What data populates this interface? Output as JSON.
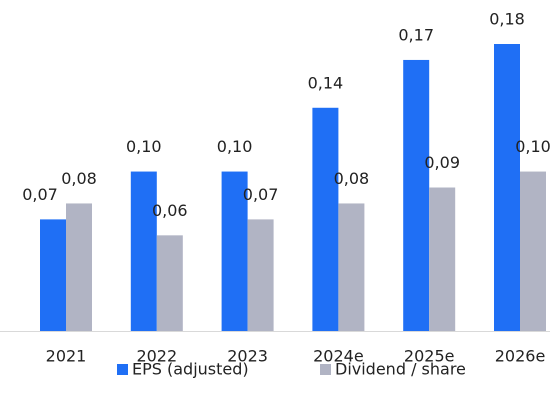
{
  "chart_data": {
    "type": "bar",
    "categories": [
      "2021",
      "2022",
      "2023",
      "2024e",
      "2025e",
      "2026e"
    ],
    "series": [
      {
        "name": "EPS (adjusted)",
        "color": "#1f6ff5",
        "values": [
          0.07,
          0.1,
          0.1,
          0.14,
          0.17,
          0.18
        ],
        "value_labels": [
          "0,07",
          "0,10",
          "0,10",
          "0,14",
          "0,17",
          "0,18"
        ]
      },
      {
        "name": "Dividend / share",
        "color": "#b1b4c4",
        "values": [
          0.08,
          0.06,
          0.07,
          0.08,
          0.09,
          0.1
        ],
        "value_labels": [
          "0,08",
          "0,06",
          "0,07",
          "0,08",
          "0,09",
          "0,10"
        ]
      }
    ],
    "legend": "bottom"
  }
}
